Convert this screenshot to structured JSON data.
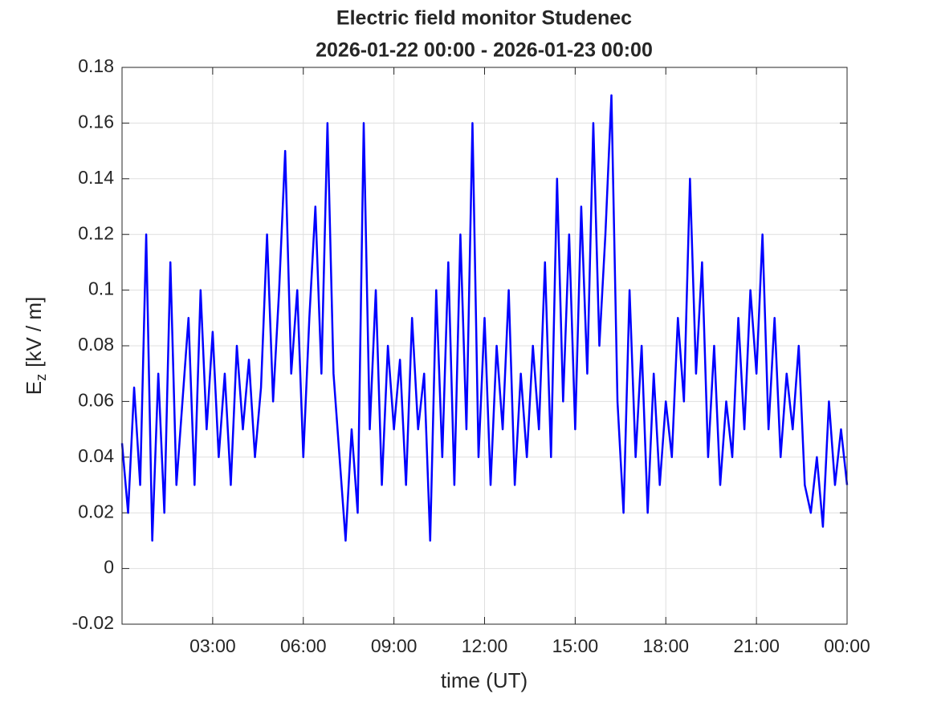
{
  "chart_data": {
    "type": "line",
    "title": "Electric field monitor Studenec",
    "subtitle": "2026-01-22 00:00 - 2026-01-23 00:00",
    "xlabel": "time (UT)",
    "ylabel": {
      "main": "E",
      "sub": "z",
      "unit": "[kV / m]"
    },
    "xlim": [
      0,
      24
    ],
    "xticks": [
      {
        "value": 3,
        "label": "03:00"
      },
      {
        "value": 6,
        "label": "06:00"
      },
      {
        "value": 9,
        "label": "09:00"
      },
      {
        "value": 12,
        "label": "12:00"
      },
      {
        "value": 15,
        "label": "15:00"
      },
      {
        "value": 18,
        "label": "18:00"
      },
      {
        "value": 21,
        "label": "21:00"
      },
      {
        "value": 24,
        "label": "00:00"
      }
    ],
    "ylim": [
      -0.02,
      0.18
    ],
    "yticks": [
      -0.02,
      0,
      0.02,
      0.04,
      0.06,
      0.08,
      0.1,
      0.12,
      0.14,
      0.16,
      0.18
    ],
    "grid": true,
    "x": [
      0,
      0.2,
      0.4,
      0.6,
      0.8,
      1,
      1.2,
      1.4,
      1.6,
      1.8,
      2,
      2.2,
      2.4,
      2.6,
      2.8,
      3,
      3.2,
      3.4,
      3.6,
      3.8,
      4,
      4.2,
      4.4,
      4.6,
      4.8,
      5,
      5.2,
      5.4,
      5.6,
      5.8,
      6,
      6.2,
      6.4,
      6.6,
      6.8,
      7,
      7.2,
      7.4,
      7.6,
      7.8,
      8,
      8.2,
      8.4,
      8.6,
      8.8,
      9,
      9.2,
      9.4,
      9.6,
      9.8,
      10,
      10.2,
      10.4,
      10.6,
      10.8,
      11,
      11.2,
      11.4,
      11.6,
      11.8,
      12,
      12.2,
      12.4,
      12.6,
      12.8,
      13,
      13.2,
      13.4,
      13.6,
      13.8,
      14,
      14.2,
      14.4,
      14.6,
      14.8,
      15,
      15.2,
      15.4,
      15.6,
      15.8,
      16,
      16.2,
      16.4,
      16.6,
      16.8,
      17,
      17.2,
      17.4,
      17.6,
      17.8,
      18,
      18.2,
      18.4,
      18.6,
      18.8,
      19,
      19.2,
      19.4,
      19.6,
      19.8,
      20,
      20.2,
      20.4,
      20.6,
      20.8,
      21,
      21.2,
      21.4,
      21.6,
      21.8,
      22,
      22.2,
      22.4,
      22.6,
      22.8,
      23,
      23.2,
      23.4,
      23.6,
      23.8,
      24
    ],
    "series": [
      {
        "color": "#0000ff",
        "values": [
          0.045,
          0.02,
          0.065,
          0.03,
          0.12,
          0.01,
          0.07,
          0.02,
          0.11,
          0.03,
          0.06,
          0.09,
          0.03,
          0.1,
          0.05,
          0.085,
          0.04,
          0.07,
          0.03,
          0.08,
          0.05,
          0.075,
          0.04,
          0.065,
          0.12,
          0.06,
          0.1,
          0.15,
          0.07,
          0.1,
          0.04,
          0.09,
          0.13,
          0.07,
          0.16,
          0.07,
          0.04,
          0.01,
          0.05,
          0.02,
          0.16,
          0.05,
          0.1,
          0.03,
          0.08,
          0.05,
          0.075,
          0.03,
          0.09,
          0.05,
          0.07,
          0.01,
          0.1,
          0.04,
          0.11,
          0.03,
          0.12,
          0.05,
          0.16,
          0.04,
          0.09,
          0.03,
          0.08,
          0.05,
          0.1,
          0.03,
          0.07,
          0.04,
          0.08,
          0.05,
          0.11,
          0.04,
          0.14,
          0.06,
          0.12,
          0.05,
          0.13,
          0.07,
          0.16,
          0.08,
          0.12,
          0.17,
          0.06,
          0.02,
          0.1,
          0.04,
          0.08,
          0.02,
          0.07,
          0.03,
          0.06,
          0.04,
          0.09,
          0.06,
          0.14,
          0.07,
          0.11,
          0.04,
          0.08,
          0.03,
          0.06,
          0.04,
          0.09,
          0.05,
          0.1,
          0.07,
          0.12,
          0.05,
          0.09,
          0.04,
          0.07,
          0.05,
          0.08,
          0.03,
          0.02,
          0.04,
          0.015,
          0.06,
          0.03,
          0.05,
          0.03
        ]
      }
    ]
  }
}
